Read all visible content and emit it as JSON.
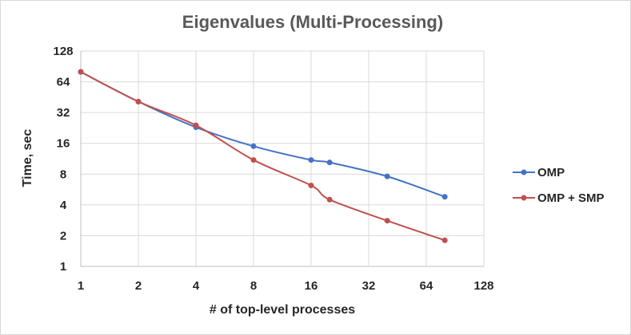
{
  "chart_data": {
    "type": "line",
    "title": "Eigenvalues (Multi-Processing)",
    "xlabel": "# of top-level processes",
    "ylabel": "Time, sec",
    "x_scale": "log2",
    "y_scale": "log2",
    "xlim": [
      1,
      128
    ],
    "ylim": [
      1,
      128
    ],
    "x_ticks": [
      "1",
      "2",
      "4",
      "8",
      "16",
      "32",
      "64",
      "128"
    ],
    "y_ticks": [
      "1",
      "2",
      "4",
      "8",
      "16",
      "32",
      "64",
      "128"
    ],
    "grid": "horizontal and vertical",
    "legend_position": "right",
    "series": [
      {
        "name": "OMP",
        "color": "#4472c4",
        "points": [
          [
            1,
            80
          ],
          [
            2,
            41
          ],
          [
            4,
            23
          ],
          [
            8,
            15
          ],
          [
            16,
            11
          ],
          [
            20,
            10.4
          ],
          [
            40,
            7.6
          ],
          [
            80,
            4.8
          ]
        ]
      },
      {
        "name": "OMP + SMP",
        "color": "#c0504d",
        "points": [
          [
            1,
            80
          ],
          [
            2,
            41
          ],
          [
            4,
            24
          ],
          [
            8,
            11
          ],
          [
            16,
            6.2
          ],
          [
            20,
            4.5
          ],
          [
            40,
            2.8
          ],
          [
            80,
            1.8
          ]
        ]
      }
    ]
  }
}
